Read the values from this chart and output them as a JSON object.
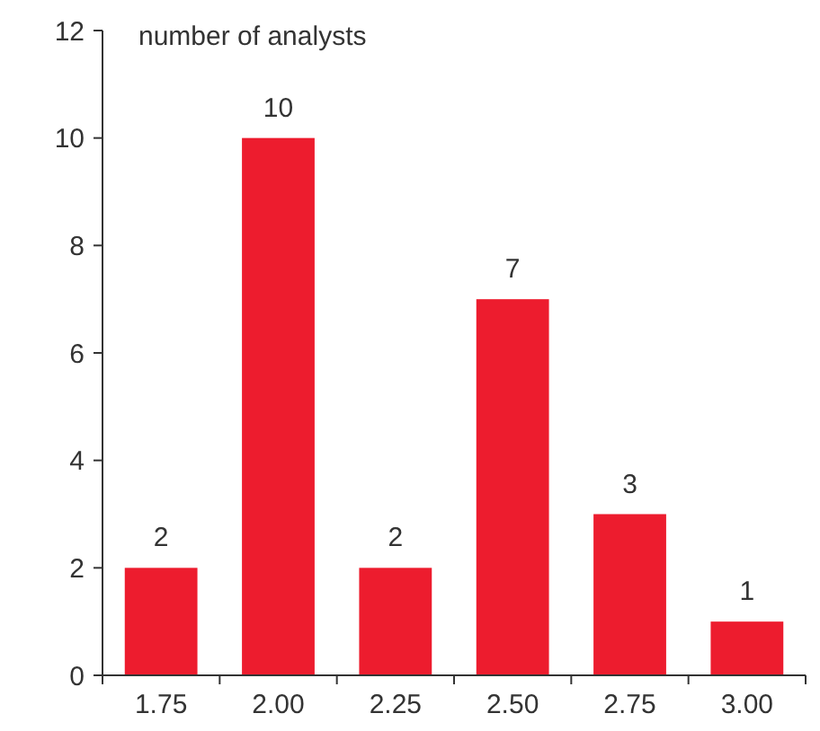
{
  "chart_data": {
    "type": "bar",
    "ylabel": "number of analysts",
    "categories": [
      "1.75",
      "2.00",
      "2.25",
      "2.50",
      "2.75",
      "3.00"
    ],
    "values": [
      2,
      10,
      2,
      7,
      3,
      1
    ],
    "color": "#ed1c2e",
    "ylim": [
      0,
      12
    ],
    "yticks": [
      0,
      2,
      4,
      6,
      8,
      10,
      12
    ],
    "data_labels": true,
    "grid": false
  }
}
